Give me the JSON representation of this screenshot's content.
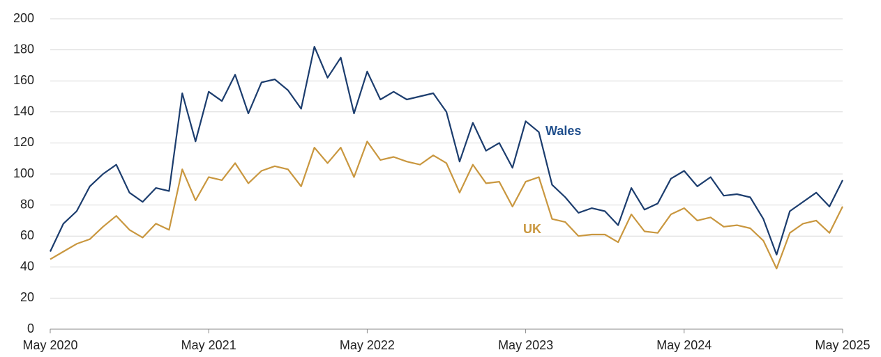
{
  "chart_data": {
    "type": "line",
    "categories": [
      "May 2020",
      null,
      null,
      null,
      null,
      null,
      null,
      null,
      null,
      null,
      null,
      null,
      "May 2021",
      null,
      null,
      null,
      null,
      null,
      null,
      null,
      null,
      null,
      null,
      null,
      "May 2022",
      null,
      null,
      null,
      null,
      null,
      null,
      null,
      null,
      null,
      null,
      null,
      "May 2023",
      null,
      null,
      null,
      null,
      null,
      null,
      null,
      null,
      null,
      null,
      null,
      "May 2024",
      null,
      null,
      null,
      null,
      null,
      null,
      null,
      null,
      null,
      null,
      null,
      "May 2025"
    ],
    "series": [
      {
        "name": "Wales",
        "color": "#1c3d6e",
        "label_color": "#1f4e8c",
        "values": [
          50,
          68,
          76,
          92,
          100,
          106,
          88,
          82,
          91,
          89,
          152,
          121,
          153,
          147,
          164,
          139,
          159,
          161,
          154,
          142,
          182,
          162,
          175,
          139,
          166,
          148,
          153,
          148,
          150,
          152,
          140,
          108,
          133,
          115,
          120,
          104,
          134,
          127,
          93,
          85,
          75,
          78,
          76,
          67,
          91,
          77,
          81,
          97,
          102,
          92,
          98,
          86,
          87,
          85,
          71,
          48,
          76,
          82,
          88,
          79,
          96
        ]
      },
      {
        "name": "UK",
        "color": "#c9973f",
        "label_color": "#c9973f",
        "values": [
          45,
          50,
          55,
          58,
          66,
          73,
          64,
          59,
          68,
          64,
          103,
          83,
          98,
          96,
          107,
          94,
          102,
          105,
          103,
          92,
          117,
          107,
          117,
          98,
          121,
          109,
          111,
          108,
          106,
          112,
          107,
          88,
          106,
          94,
          95,
          79,
          95,
          98,
          71,
          69,
          60,
          61,
          61,
          56,
          74,
          63,
          62,
          74,
          78,
          70,
          72,
          66,
          67,
          65,
          57,
          39,
          62,
          68,
          70,
          62,
          79
        ]
      }
    ],
    "ylim": [
      0,
      200
    ],
    "yticks": [
      0,
      20,
      40,
      60,
      80,
      100,
      120,
      140,
      160,
      180,
      200
    ],
    "grid": true
  }
}
